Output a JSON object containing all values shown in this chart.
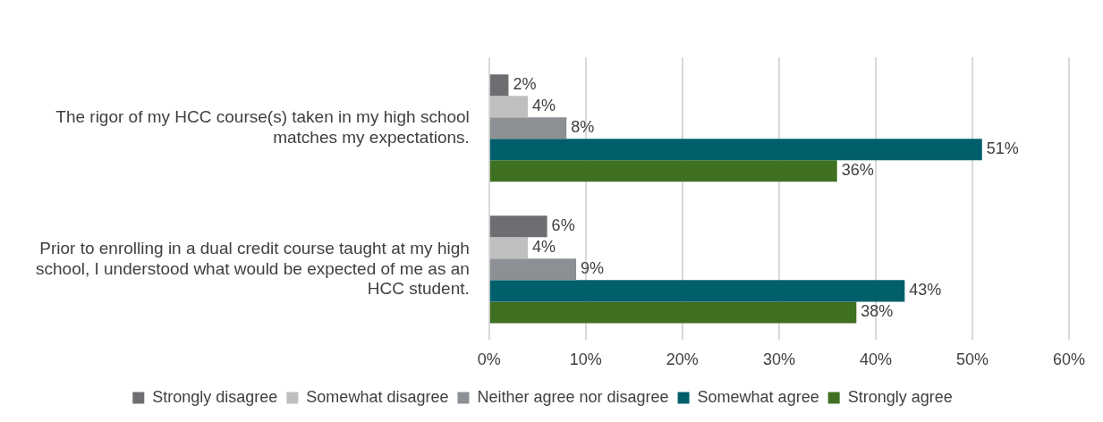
{
  "chart_data": {
    "type": "bar",
    "orientation": "horizontal",
    "categories": [
      "The rigor of my HCC course(s) taken in my high school matches my expectations.",
      "Prior to enrolling in a dual credit course taught at my high school, I understood what would be expected of me as an HCC student."
    ],
    "series": [
      {
        "name": "Strongly disagree",
        "color": "#6d6e71",
        "values": [
          2,
          6
        ],
        "value_labels": [
          "2%",
          "6%"
        ]
      },
      {
        "name": "Somewhat disagree",
        "color": "#bfbfbf",
        "values": [
          4,
          4
        ],
        "value_labels": [
          "4%",
          "4%"
        ]
      },
      {
        "name": "Neither agree nor disagree",
        "color": "#8c8f93",
        "values": [
          8,
          9
        ],
        "value_labels": [
          "8%",
          "9%"
        ]
      },
      {
        "name": "Somewhat agree",
        "color": "#005f6b",
        "values": [
          51,
          43
        ],
        "value_labels": [
          "51%",
          "43%"
        ]
      },
      {
        "name": "Strongly agree",
        "color": "#3f7021",
        "values": [
          36,
          38
        ],
        "value_labels": [
          "36%",
          "38%"
        ]
      }
    ],
    "xlim": [
      0,
      60
    ],
    "xticks": [
      {
        "value": 0,
        "label": "0%"
      },
      {
        "value": 10,
        "label": "10%"
      },
      {
        "value": 20,
        "label": "20%"
      },
      {
        "value": 30,
        "label": "30%"
      },
      {
        "value": 40,
        "label": "40%"
      },
      {
        "value": 50,
        "label": "50%"
      },
      {
        "value": 60,
        "label": "60%"
      }
    ],
    "grid": "x",
    "legend": "bottom"
  }
}
